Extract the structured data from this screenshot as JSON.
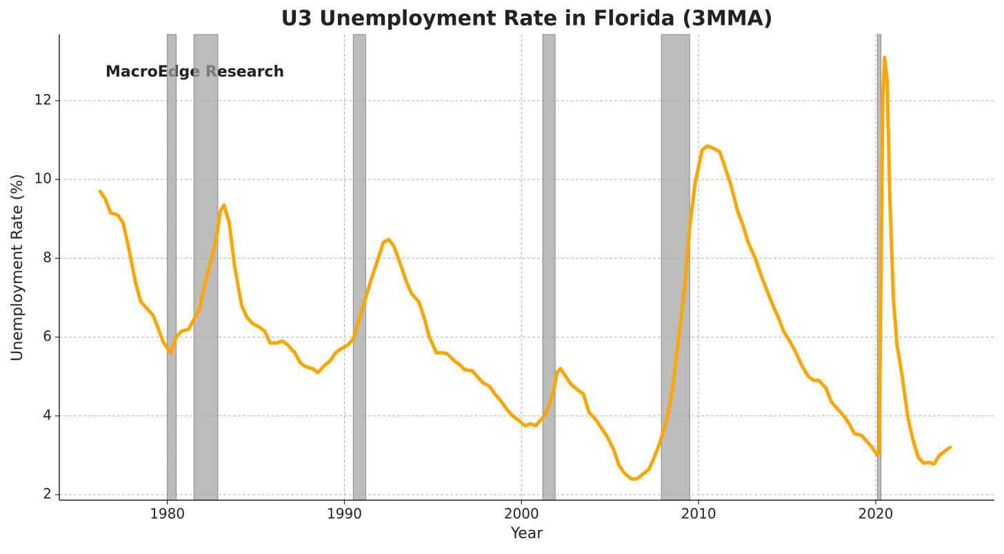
{
  "chart_data": {
    "type": "line",
    "title": "U3 Unemployment Rate in Florida (3MMA)",
    "xlabel": "Year",
    "ylabel": "Unemployment Rate (%)",
    "annotation": {
      "text": "MacroEdge Research",
      "color": "#0000ff"
    },
    "xlim": [
      1973.9,
      2026.7
    ],
    "ylim": [
      1.86,
      13.68
    ],
    "xticks": [
      1980,
      1990,
      2000,
      2010,
      2020
    ],
    "yticks": [
      2,
      4,
      6,
      8,
      10,
      12
    ],
    "grid": true,
    "recessions": {
      "color": "#a0a0a0",
      "spans": [
        [
          1980.0,
          1980.5
        ],
        [
          1981.5,
          1982.85
        ],
        [
          1990.5,
          1991.2
        ],
        [
          2001.2,
          2001.9
        ],
        [
          2007.9,
          2009.5
        ],
        [
          2020.1,
          2020.3
        ]
      ]
    },
    "x": [
      1976.2,
      1976.5,
      1976.8,
      1977.2,
      1977.5,
      1977.8,
      1978.2,
      1978.5,
      1978.8,
      1979.2,
      1979.5,
      1979.8,
      1980.2,
      1980.5,
      1980.8,
      1981.2,
      1981.5,
      1981.8,
      1982.2,
      1982.5,
      1982.8,
      1983.0,
      1983.2,
      1983.5,
      1983.8,
      1984.2,
      1984.5,
      1984.8,
      1985.2,
      1985.5,
      1985.8,
      1986.2,
      1986.5,
      1986.8,
      1987.2,
      1987.5,
      1987.8,
      1988.2,
      1988.5,
      1988.8,
      1989.2,
      1989.5,
      1989.8,
      1990.2,
      1990.5,
      1990.8,
      1991.2,
      1991.5,
      1991.8,
      1992.2,
      1992.5,
      1992.8,
      1993.2,
      1993.5,
      1993.8,
      1994.2,
      1994.5,
      1994.8,
      1995.2,
      1995.5,
      1995.8,
      1996.2,
      1996.5,
      1996.8,
      1997.2,
      1997.5,
      1997.8,
      1998.2,
      1998.5,
      1998.8,
      1999.2,
      1999.5,
      1999.8,
      2000.2,
      2000.5,
      2000.8,
      2001.2,
      2001.5,
      2001.8,
      2002.0,
      2002.2,
      2002.5,
      2002.8,
      2003.2,
      2003.5,
      2003.8,
      2004.2,
      2004.5,
      2004.8,
      2005.2,
      2005.5,
      2005.8,
      2006.2,
      2006.5,
      2006.8,
      2007.2,
      2007.5,
      2007.8,
      2008.2,
      2008.5,
      2008.8,
      2009.2,
      2009.5,
      2009.8,
      2010.2,
      2010.5,
      2010.8,
      2011.2,
      2011.5,
      2011.8,
      2012.2,
      2012.5,
      2012.8,
      2013.2,
      2013.5,
      2013.8,
      2014.2,
      2014.5,
      2014.8,
      2015.2,
      2015.5,
      2015.8,
      2016.2,
      2016.5,
      2016.8,
      2017.2,
      2017.5,
      2017.8,
      2018.2,
      2018.5,
      2018.8,
      2019.2,
      2019.5,
      2019.8,
      2020.1,
      2020.2,
      2020.4,
      2020.5,
      2020.65,
      2020.8,
      2021.0,
      2021.2,
      2021.5,
      2021.8,
      2022.1,
      2022.4,
      2022.7,
      2023.0,
      2023.3,
      2023.6,
      2023.9,
      2024.2
    ],
    "series": [
      {
        "name": "U3 Unemployment Rate (3MMA)",
        "color": "#ffa500",
        "values": [
          9.7,
          9.5,
          9.15,
          9.1,
          8.9,
          8.3,
          7.4,
          6.9,
          6.75,
          6.55,
          6.2,
          5.85,
          5.6,
          6.0,
          6.15,
          6.2,
          6.45,
          6.7,
          7.5,
          8.0,
          8.6,
          9.2,
          9.35,
          8.9,
          7.8,
          6.8,
          6.5,
          6.35,
          6.25,
          6.15,
          5.85,
          5.85,
          5.9,
          5.8,
          5.6,
          5.35,
          5.25,
          5.2,
          5.1,
          5.25,
          5.4,
          5.6,
          5.7,
          5.8,
          5.95,
          6.4,
          7.0,
          7.45,
          7.85,
          8.4,
          8.48,
          8.3,
          7.8,
          7.4,
          7.1,
          6.9,
          6.5,
          6.0,
          5.6,
          5.6,
          5.58,
          5.4,
          5.3,
          5.17,
          5.15,
          5.0,
          4.85,
          4.75,
          4.55,
          4.4,
          4.15,
          4.0,
          3.9,
          3.75,
          3.8,
          3.75,
          3.95,
          4.2,
          4.6,
          5.1,
          5.2,
          5.0,
          4.8,
          4.65,
          4.55,
          4.1,
          3.9,
          3.7,
          3.5,
          3.15,
          2.75,
          2.55,
          2.4,
          2.4,
          2.5,
          2.65,
          2.95,
          3.3,
          3.9,
          4.6,
          5.7,
          7.2,
          8.8,
          9.9,
          10.75,
          10.85,
          10.8,
          10.7,
          10.3,
          9.9,
          9.2,
          8.85,
          8.4,
          8.0,
          7.6,
          7.25,
          6.8,
          6.5,
          6.15,
          5.85,
          5.6,
          5.3,
          5.0,
          4.9,
          4.9,
          4.7,
          4.35,
          4.2,
          4.0,
          3.8,
          3.55,
          3.5,
          3.35,
          3.2,
          3.0,
          3.1,
          12.0,
          13.1,
          12.5,
          9.5,
          7.0,
          5.8,
          5.0,
          4.0,
          3.4,
          2.95,
          2.8,
          2.82,
          2.78,
          3.0,
          3.1,
          3.2
        ]
      }
    ]
  }
}
